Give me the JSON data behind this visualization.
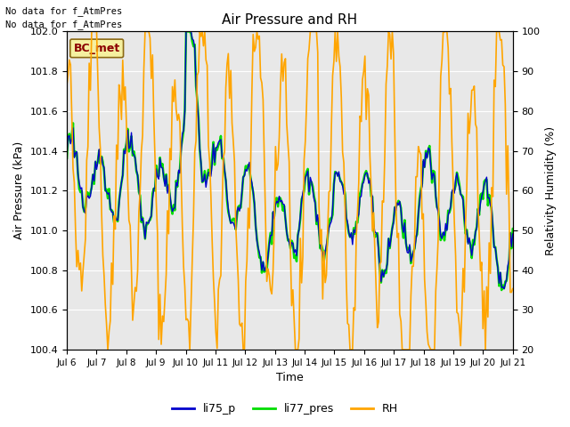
{
  "title": "Air Pressure and RH",
  "xlabel": "Time",
  "ylabel_left": "Air Pressure (kPa)",
  "ylabel_right": "Relativity Humidity (%)",
  "ylim_left": [
    100.4,
    102.0
  ],
  "ylim_right": [
    20,
    100
  ],
  "yticks_left": [
    100.4,
    100.6,
    100.8,
    101.0,
    101.2,
    101.4,
    101.6,
    101.8,
    102.0
  ],
  "yticks_right": [
    20,
    30,
    40,
    50,
    60,
    70,
    80,
    90,
    100
  ],
  "xtick_labels": [
    "Jul 6",
    "Jul 7",
    "Jul 8",
    "Jul 9",
    "Jul 10",
    "Jul 11",
    "Jul 12",
    "Jul 13",
    "Jul 14",
    "Jul 15",
    "Jul 16",
    "Jul 17",
    "Jul 18",
    "Jul 19",
    "Jul 20",
    "Jul 21"
  ],
  "header_text1": "No data for f_AtmPres",
  "header_text2": "No data for f_AtmPres",
  "station_label": "BC_met",
  "station_label_color": "#8B0000",
  "station_box_facecolor": "#F5F0A0",
  "station_box_edgecolor": "#8B6914",
  "line_li75_color": "#0000CC",
  "line_li77_color": "#00DD00",
  "line_rh_color": "#FFA500",
  "background_color": "#E8E8E8",
  "grid_color": "#FFFFFF",
  "legend_li75": "li75_p",
  "legend_li77": "li77_pres",
  "legend_rh": "RH"
}
